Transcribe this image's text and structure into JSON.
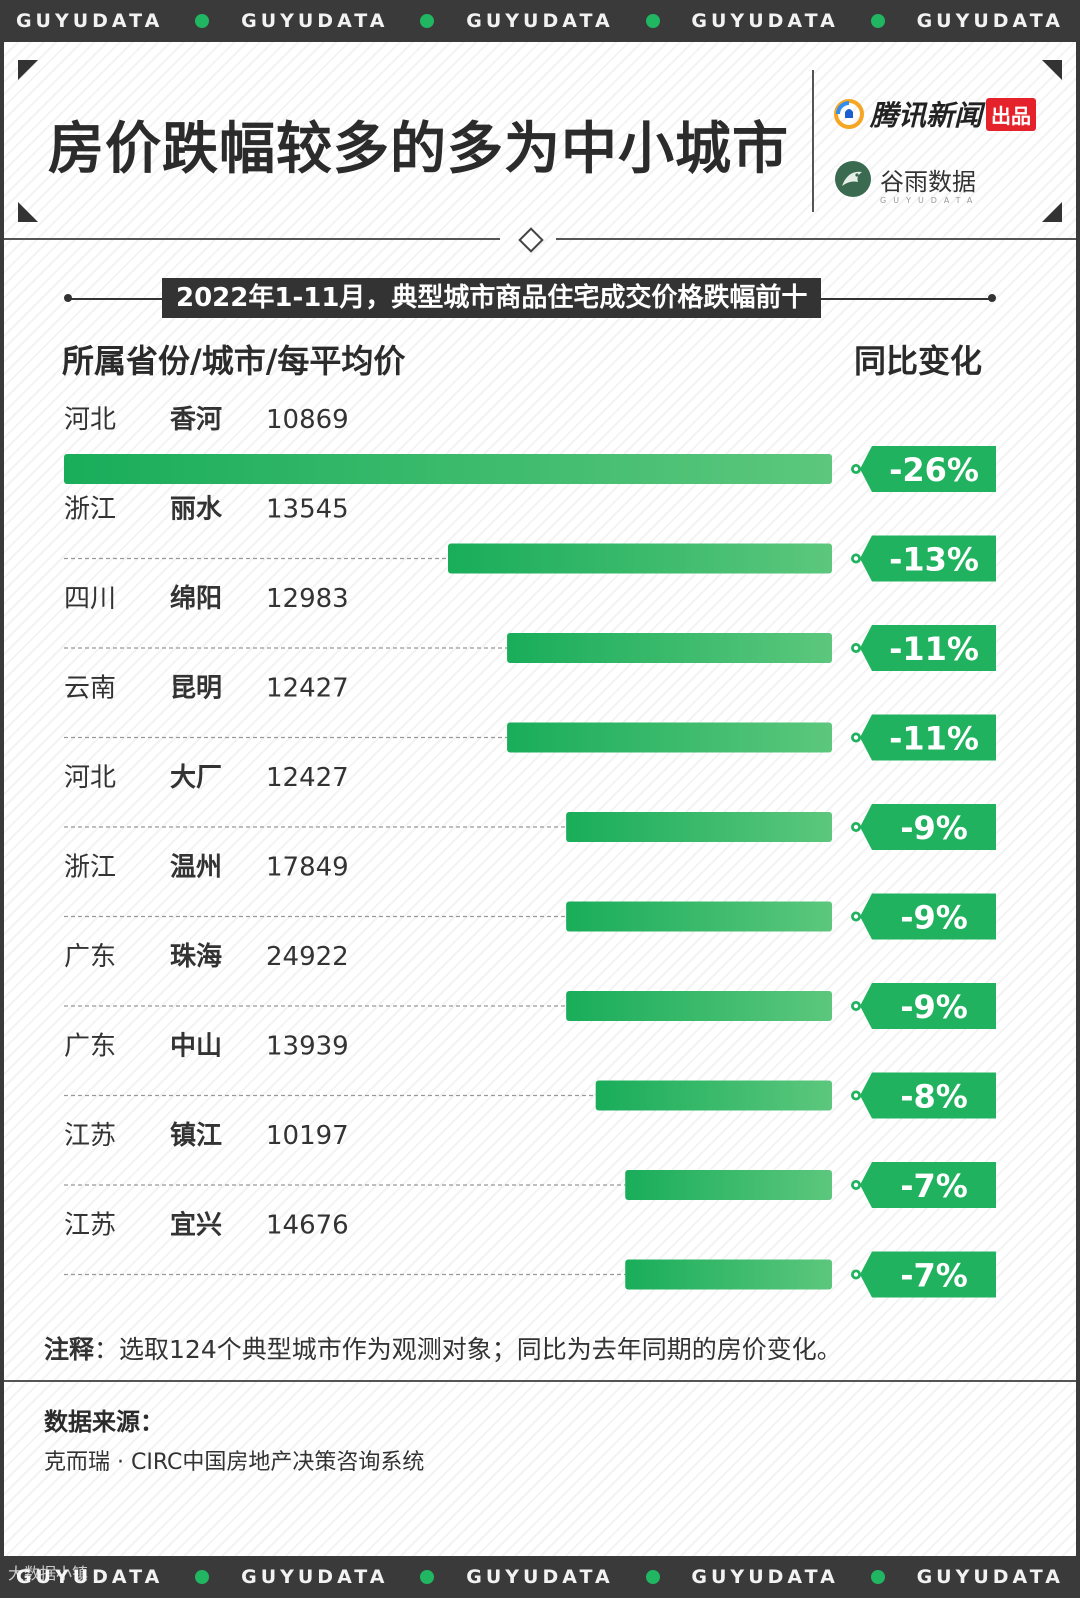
{
  "strip": {
    "text": "GUYUDATA",
    "count": 5
  },
  "header": {
    "title": "房价跌幅较多的多为中小城市",
    "brand1": "腾讯新闻",
    "brand1_badge": "出品",
    "brand2": "谷雨数据",
    "brand2_sub": "GUYUDATA"
  },
  "chart_data": {
    "type": "bar",
    "orientation": "horizontal",
    "title": "2022年1-11月，典型城市商品住宅成交价格跌幅前十",
    "left_header": "所属省份/城市/每平均价",
    "right_header": "同比变化",
    "unit": "%",
    "rows": [
      {
        "province": "河北",
        "city": "香河",
        "price": "10869",
        "value": -26,
        "label": "-26%"
      },
      {
        "province": "浙江",
        "city": "丽水",
        "price": "13545",
        "value": -13,
        "label": "-13%"
      },
      {
        "province": "四川",
        "city": "绵阳",
        "price": "12983",
        "value": -11,
        "label": "-11%"
      },
      {
        "province": "云南",
        "city": "昆明",
        "price": "12427",
        "value": -11,
        "label": "-11%"
      },
      {
        "province": "河北",
        "city": "大厂",
        "price": "12427",
        "value": -9,
        "label": "-9%"
      },
      {
        "province": "浙江",
        "city": "温州",
        "price": "17849",
        "value": -9,
        "label": "-9%"
      },
      {
        "province": "广东",
        "city": "珠海",
        "price": "24922",
        "value": -9,
        "label": "-9%"
      },
      {
        "province": "广东",
        "city": "中山",
        "price": "13939",
        "value": -8,
        "label": "-8%"
      },
      {
        "province": "江苏",
        "city": "镇江",
        "price": "10197",
        "value": -7,
        "label": "-7%"
      },
      {
        "province": "江苏",
        "city": "宜兴",
        "price": "14676",
        "value": -7,
        "label": "-7%"
      }
    ]
  },
  "note": {
    "label": "注释",
    "text": "：选取124个典型城市作为观测对象；同比为去年同期的房价变化。"
  },
  "source": {
    "title": "数据来源：",
    "text": "克而瑞 · CIRC中国房地产决策咨询系统"
  },
  "watermark": "大数据小镇",
  "colors": {
    "bar_start": "#19ad5a",
    "bar_end": "#5cc77d",
    "tag": "#20b25f",
    "dark": "#3a3a3a"
  }
}
